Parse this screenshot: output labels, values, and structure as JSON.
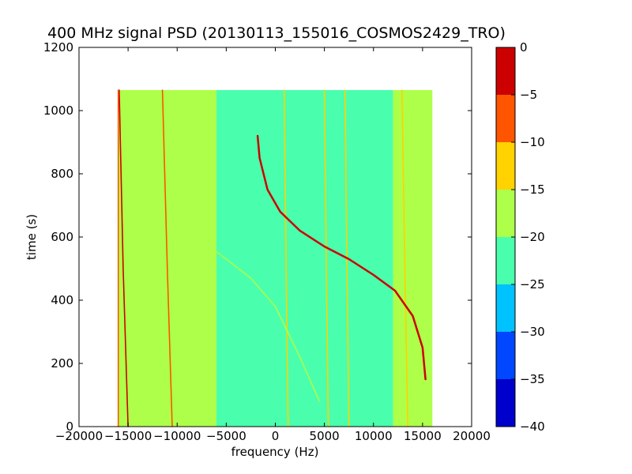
{
  "chart_data": {
    "type": "heatmap",
    "title": "400 MHz signal PSD (20130113_155016_COSMOS2429_TRO)",
    "xlabel": "frequency (Hz)",
    "ylabel": "time (s)",
    "xlim": [
      -20000,
      20000
    ],
    "ylim": [
      0,
      1200
    ],
    "xticks": [
      -20000,
      -15000,
      -10000,
      -5000,
      0,
      5000,
      10000,
      15000,
      20000
    ],
    "yticks": [
      0,
      200,
      400,
      600,
      800,
      1000,
      1200
    ],
    "data_extent": {
      "x": [
        -16000,
        16000
      ],
      "y": [
        0,
        1065
      ]
    },
    "colorbar": {
      "range": [
        -40,
        0
      ],
      "ticks": [
        -40,
        -35,
        -30,
        -25,
        -20,
        -15,
        -10,
        -5,
        0
      ],
      "colors": [
        "#0000cc",
        "#0047ff",
        "#00c2ff",
        "#49ffad",
        "#aeff49",
        "#ffd200",
        "#ff5500",
        "#cc0000"
      ]
    },
    "background_bands": [
      {
        "x": [
          -16000,
          -6000
        ],
        "level": -17.5
      },
      {
        "x": [
          -6000,
          12000
        ],
        "level": -22.5
      },
      {
        "x": [
          12000,
          16000
        ],
        "level": -17.5
      }
    ],
    "features": [
      {
        "name": "carrier-15400",
        "points": [
          [
            -15000,
            0
          ],
          [
            -15500,
            500
          ],
          [
            -15900,
            1065
          ]
        ],
        "level": -5
      },
      {
        "name": "carrier-10800",
        "points": [
          [
            -10500,
            0
          ],
          [
            -11000,
            500
          ],
          [
            -11500,
            1065
          ]
        ],
        "level": -10
      },
      {
        "name": "carrier-1500",
        "points": [
          [
            1300,
            0
          ],
          [
            1100,
            500
          ],
          [
            900,
            1065
          ]
        ],
        "level": -15
      },
      {
        "name": "carrier-5200",
        "points": [
          [
            5400,
            0
          ],
          [
            5200,
            500
          ],
          [
            5000,
            1065
          ]
        ],
        "level": -15
      },
      {
        "name": "carrier-7400",
        "points": [
          [
            7500,
            0
          ],
          [
            7300,
            500
          ],
          [
            7100,
            1065
          ]
        ],
        "level": -12
      },
      {
        "name": "carrier-13200",
        "points": [
          [
            13500,
            0
          ],
          [
            13200,
            500
          ],
          [
            12900,
            1065
          ]
        ],
        "level": -12
      },
      {
        "name": "satellite-doppler",
        "points": [
          [
            15300,
            150
          ],
          [
            15000,
            250
          ],
          [
            14000,
            350
          ],
          [
            12200,
            430
          ],
          [
            10000,
            480
          ],
          [
            7500,
            530
          ],
          [
            5000,
            570
          ],
          [
            2500,
            620
          ],
          [
            500,
            680
          ],
          [
            -800,
            750
          ],
          [
            -1600,
            850
          ],
          [
            -1800,
            920
          ]
        ],
        "level": -2
      },
      {
        "name": "weak-doppler",
        "points": [
          [
            -8000,
            600
          ],
          [
            -5000,
            530
          ],
          [
            -2500,
            470
          ],
          [
            0,
            380
          ],
          [
            2500,
            220
          ],
          [
            4500,
            80
          ]
        ],
        "level": -17
      },
      {
        "name": "edge-line-left",
        "points": [
          [
            -16000,
            0
          ],
          [
            -16000,
            1065
          ]
        ],
        "level": -10
      }
    ]
  }
}
